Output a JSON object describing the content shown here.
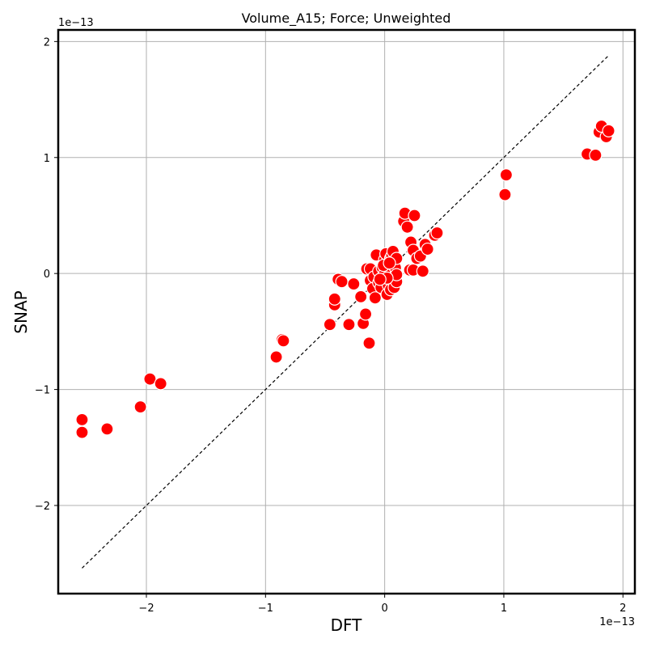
{
  "chart_data": {
    "type": "scatter",
    "title": "Volume_A15; Force; Unweighted",
    "xlabel": "DFT",
    "ylabel": "SNAP",
    "x_offset_label": "1e−13",
    "y_offset_label": "1e−13",
    "xlim": [
      -2.74,
      2.1
    ],
    "ylim": [
      -2.76,
      2.1
    ],
    "xticks": [
      -2,
      -1,
      0,
      1,
      2
    ],
    "yticks": [
      -2,
      -1,
      0,
      1,
      2
    ],
    "xtick_labels": [
      "−2",
      "−1",
      "0",
      "1",
      "2"
    ],
    "ytick_labels": [
      "−2",
      "−1",
      "0",
      "1",
      "2"
    ],
    "grid": true,
    "point_color": "#ff0000",
    "point_edge_color": "#ffffff",
    "reference_line": {
      "style": "dashed",
      "color": "#000000",
      "from": [
        -2.54,
        -2.54
      ],
      "to": [
        1.88,
        1.88
      ]
    },
    "points": [
      [
        -2.54,
        -1.26
      ],
      [
        -2.54,
        -1.37
      ],
      [
        -2.33,
        -1.34
      ],
      [
        -2.05,
        -1.15
      ],
      [
        -1.97,
        -0.91
      ],
      [
        -1.88,
        -0.95
      ],
      [
        -0.91,
        -0.72
      ],
      [
        -0.86,
        -0.57
      ],
      [
        -0.85,
        -0.58
      ],
      [
        -0.46,
        -0.44
      ],
      [
        -0.42,
        -0.27
      ],
      [
        -0.42,
        -0.22
      ],
      [
        -0.39,
        -0.05
      ],
      [
        -0.36,
        -0.07
      ],
      [
        -0.3,
        -0.44
      ],
      [
        -0.26,
        -0.09
      ],
      [
        -0.2,
        -0.2
      ],
      [
        -0.18,
        -0.43
      ],
      [
        -0.16,
        -0.35
      ],
      [
        -0.13,
        -0.6
      ],
      [
        -0.15,
        0.04
      ],
      [
        -0.12,
        0.04
      ],
      [
        -0.12,
        -0.06
      ],
      [
        -0.1,
        -0.13
      ],
      [
        -0.08,
        -0.21
      ],
      [
        -0.09,
        -0.03
      ],
      [
        -0.07,
        0.16
      ],
      [
        -0.05,
        0.02
      ],
      [
        -0.05,
        -0.08
      ],
      [
        -0.03,
        -0.12
      ],
      [
        -0.02,
        0.05
      ],
      [
        -0.01,
        -0.02
      ],
      [
        0.0,
        0.12
      ],
      [
        0.01,
        -0.06
      ],
      [
        0.01,
        0.17
      ],
      [
        0.02,
        0.0
      ],
      [
        0.02,
        -0.18
      ],
      [
        0.03,
        0.08
      ],
      [
        0.03,
        -0.1
      ],
      [
        0.04,
        0.03
      ],
      [
        0.05,
        -0.14
      ],
      [
        0.05,
        0.13
      ],
      [
        0.06,
        0.15
      ],
      [
        0.06,
        -0.03
      ],
      [
        0.07,
        0.19
      ],
      [
        0.08,
        -0.12
      ],
      [
        0.09,
        0.05
      ],
      [
        0.1,
        -0.07
      ],
      [
        0.1,
        0.13
      ],
      [
        0.1,
        -0.01
      ],
      [
        0.0,
        0.0
      ],
      [
        -0.01,
        0.07
      ],
      [
        0.02,
        -0.04
      ],
      [
        0.04,
        0.09
      ],
      [
        -0.04,
        -0.05
      ],
      [
        0.16,
        0.45
      ],
      [
        0.17,
        0.52
      ],
      [
        0.19,
        0.4
      ],
      [
        0.21,
        0.03
      ],
      [
        0.22,
        0.27
      ],
      [
        0.24,
        0.2
      ],
      [
        0.24,
        0.03
      ],
      [
        0.25,
        0.5
      ],
      [
        0.27,
        0.13
      ],
      [
        0.3,
        0.15
      ],
      [
        0.32,
        0.02
      ],
      [
        0.34,
        0.25
      ],
      [
        0.36,
        0.21
      ],
      [
        0.42,
        0.33
      ],
      [
        0.44,
        0.35
      ],
      [
        1.01,
        0.68
      ],
      [
        1.02,
        0.85
      ],
      [
        1.7,
        1.03
      ],
      [
        1.77,
        1.02
      ],
      [
        1.8,
        1.22
      ],
      [
        1.82,
        1.27
      ],
      [
        1.86,
        1.18
      ],
      [
        1.88,
        1.23
      ]
    ]
  }
}
